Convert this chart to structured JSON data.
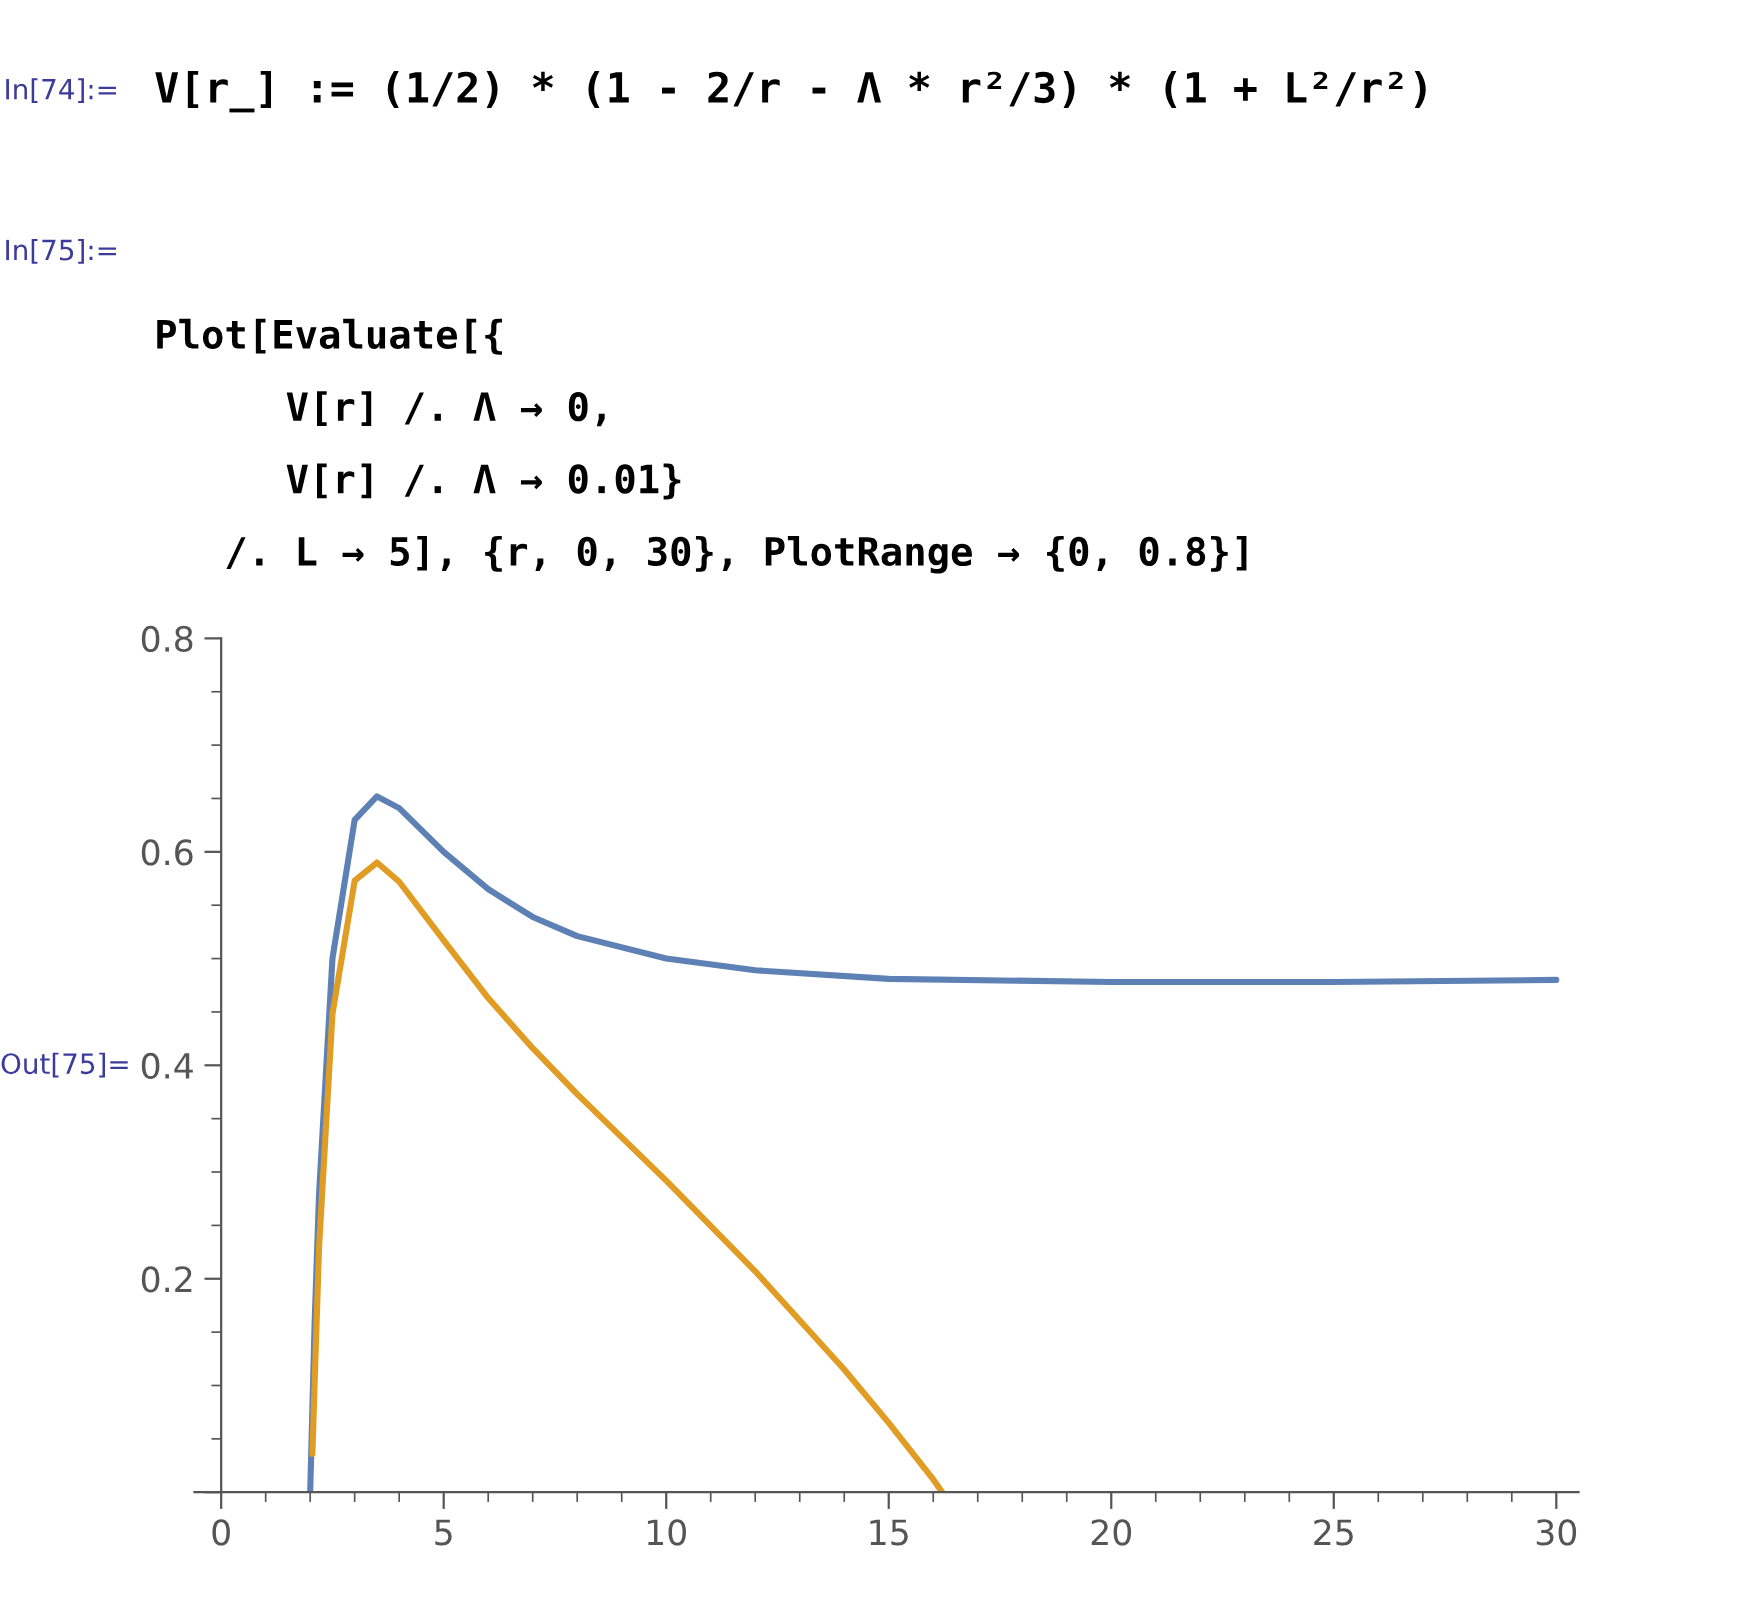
{
  "chart_data": {
    "type": "line",
    "annotations": [
      "In[74]:=",
      "V[r_] := (1/2) * (1 - 2/r - Λ * r²/3) * (1 + L²/r²)",
      "In[75]:=",
      "Plot[Evaluate[{",
      "V[r] /. Λ → 0,",
      "V[r] /. Λ → 0.01}",
      "/. L → 5], {r, 0, 30}, PlotRange → {0, 0.8}]",
      "Out[75]="
    ],
    "series": [
      {
        "color": "#5e81b5",
        "x": [
          2,
          2.1,
          2.2,
          2.5,
          3,
          3.5,
          4,
          5,
          6,
          7,
          8,
          10,
          12,
          15,
          20,
          25,
          30
        ],
        "values": [
          0,
          0.159,
          0.28,
          0.5,
          0.63,
          0.652,
          0.641,
          0.6,
          0.565,
          0.539,
          0.521,
          0.5,
          0.489,
          0.481,
          0.478,
          0.478,
          0.48
        ]
      },
      {
        "color": "#e19c24",
        "x": [
          2.05,
          2.1,
          2.2,
          2.5,
          3,
          3.5,
          4,
          5,
          6,
          7,
          8,
          10,
          12,
          14,
          15,
          16,
          16.2
        ],
        "values": [
          0.036,
          0.102,
          0.23,
          0.448,
          0.573,
          0.59,
          0.572,
          0.517,
          0.463,
          0.416,
          0.373,
          0.292,
          0.207,
          0.115,
          0.065,
          0.012,
          0
        ]
      }
    ],
    "xlim": [
      -0.6,
      30.5
    ],
    "ylim": [
      0,
      0.8
    ],
    "xticks": [
      0,
      5,
      10,
      15,
      20,
      25,
      30
    ],
    "yticks": [
      {
        "value": 0,
        "label": null
      },
      0.2,
      0.4,
      0.6,
      0.8
    ],
    "grid": false,
    "legend": false,
    "marker": "none",
    "line_style": "solid"
  }
}
